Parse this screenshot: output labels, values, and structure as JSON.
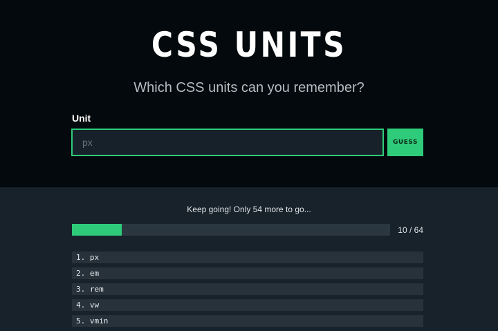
{
  "header": {
    "title": "CSS UNITS",
    "subtitle": "Which CSS units can you remember?"
  },
  "form": {
    "label": "Unit",
    "placeholder": "px",
    "value": "",
    "guess_label": "GUESS"
  },
  "progress": {
    "message": "Keep going! Only 54 more to go...",
    "found": 10,
    "total": 64,
    "count_text": "10 / 64",
    "percent": 15.6
  },
  "colors": {
    "accent": "#2ecc7a",
    "top_bg": "#03090c",
    "bottom_bg": "#17222b"
  },
  "units": [
    "1. px",
    "2. em",
    "3. rem",
    "4. vw",
    "5. vmin"
  ]
}
